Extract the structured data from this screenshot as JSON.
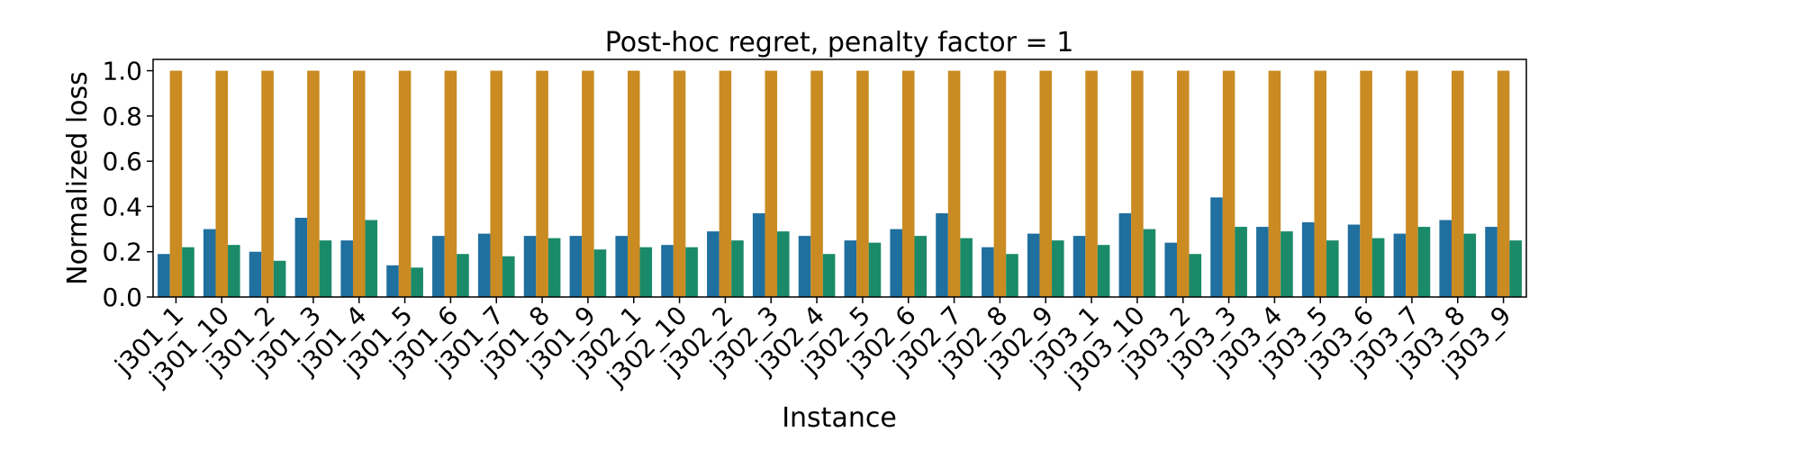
{
  "chart_data": {
    "type": "bar",
    "title": "Post-hoc regret, penalty factor = 1",
    "xlabel": "Instance",
    "ylabel": "Normalized loss",
    "ylim": [
      0,
      1.05
    ],
    "yticks": [
      "0.0",
      "0.2",
      "0.4",
      "0.6",
      "0.8",
      "1.0"
    ],
    "grid": false,
    "legend": "none",
    "categories": [
      "j301_1",
      "j301_10",
      "j301_2",
      "j301_3",
      "j301_4",
      "j301_5",
      "j301_6",
      "j301_7",
      "j301_8",
      "j301_9",
      "j302_1",
      "j302_10",
      "j302_2",
      "j302_3",
      "j302_4",
      "j302_5",
      "j302_6",
      "j302_7",
      "j302_8",
      "j302_9",
      "j303_1",
      "j303_10",
      "j303_2",
      "j303_3",
      "j303_4",
      "j303_5",
      "j303_6",
      "j303_7",
      "j303_8",
      "j303_9"
    ],
    "series": [
      {
        "color": "#1f6f9f",
        "values": [
          0.19,
          0.3,
          0.2,
          0.35,
          0.25,
          0.14,
          0.27,
          0.28,
          0.27,
          0.27,
          0.27,
          0.23,
          0.29,
          0.37,
          0.27,
          0.25,
          0.3,
          0.37,
          0.22,
          0.28,
          0.27,
          0.37,
          0.24,
          0.44,
          0.31,
          0.33,
          0.32,
          0.28,
          0.34,
          0.31
        ]
      },
      {
        "color": "#c98b22",
        "values": [
          1.0,
          1.0,
          1.0,
          1.0,
          1.0,
          1.0,
          1.0,
          1.0,
          1.0,
          1.0,
          1.0,
          1.0,
          1.0,
          1.0,
          1.0,
          1.0,
          1.0,
          1.0,
          1.0,
          1.0,
          1.0,
          1.0,
          1.0,
          1.0,
          1.0,
          1.0,
          1.0,
          1.0,
          1.0,
          1.0
        ]
      },
      {
        "color": "#1a8a68",
        "values": [
          0.22,
          0.23,
          0.16,
          0.25,
          0.34,
          0.13,
          0.19,
          0.18,
          0.26,
          0.21,
          0.22,
          0.22,
          0.25,
          0.29,
          0.19,
          0.24,
          0.27,
          0.26,
          0.19,
          0.25,
          0.23,
          0.3,
          0.19,
          0.31,
          0.29,
          0.25,
          0.26,
          0.31,
          0.28,
          0.25
        ]
      }
    ]
  }
}
